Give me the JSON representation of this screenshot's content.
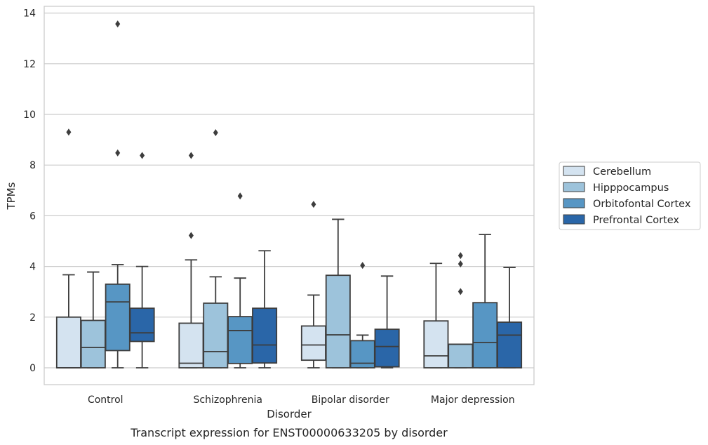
{
  "chart_data": {
    "type": "boxplot",
    "caption": "Transcript expression for ENST00000633205 by disorder",
    "xlabel": "Disorder",
    "ylabel": "TPMs",
    "ylim": [
      -0.65,
      14.25
    ],
    "yticks": [
      0,
      2,
      4,
      6,
      8,
      10,
      12,
      14
    ],
    "grid": "horizontal",
    "legend_position": "right",
    "categories": [
      "Control",
      "Schizophrenia",
      "Bipolar disorder",
      "Major depression"
    ],
    "series": [
      {
        "name": "Cerebellum",
        "color": "#d4e3f0",
        "boxes": [
          {
            "whislo": 0,
            "q1": 0,
            "median": 0,
            "q3": 2.0,
            "whishi": 3.67,
            "fliers": [
              9.3
            ]
          },
          {
            "whislo": 0,
            "q1": 0,
            "median": 0.18,
            "q3": 1.76,
            "whishi": 4.26,
            "fliers": [
              5.22,
              8.38
            ]
          },
          {
            "whislo": 0,
            "q1": 0.3,
            "median": 0.9,
            "q3": 1.65,
            "whishi": 2.87,
            "fliers": [
              6.45
            ]
          },
          {
            "whislo": 0,
            "q1": 0,
            "median": 0.47,
            "q3": 1.85,
            "whishi": 4.12,
            "fliers": []
          }
        ]
      },
      {
        "name": "Hipppocampus",
        "color": "#9dc3db",
        "boxes": [
          {
            "whislo": 0,
            "q1": 0,
            "median": 0.8,
            "q3": 1.87,
            "whishi": 3.78,
            "fliers": []
          },
          {
            "whislo": 0,
            "q1": 0,
            "median": 0.64,
            "q3": 2.55,
            "whishi": 3.59,
            "fliers": [
              9.28
            ]
          },
          {
            "whislo": 0,
            "q1": 0,
            "median": 1.3,
            "q3": 3.65,
            "whishi": 5.86,
            "fliers": []
          },
          {
            "whislo": 0,
            "q1": 0,
            "median": 0.93,
            "q3": 0.93,
            "whishi": 0.93,
            "fliers": [
              3.01,
              4.1,
              4.43
            ]
          }
        ]
      },
      {
        "name": "Orbitofontal Cortex",
        "color": "#5796c4",
        "boxes": [
          {
            "whislo": 0,
            "q1": 0.68,
            "median": 2.6,
            "q3": 3.3,
            "whishi": 4.07,
            "fliers": [
              8.48,
              13.57
            ]
          },
          {
            "whislo": 0,
            "q1": 0.17,
            "median": 1.47,
            "q3": 2.02,
            "whishi": 3.54,
            "fliers": [
              6.78
            ]
          },
          {
            "whislo": 0,
            "q1": 0,
            "median": 0.18,
            "q3": 1.07,
            "whishi": 1.29,
            "fliers": [
              4.04
            ]
          },
          {
            "whislo": 0,
            "q1": 0,
            "median": 1.0,
            "q3": 2.57,
            "whishi": 5.26,
            "fliers": []
          }
        ]
      },
      {
        "name": "Prefrontal Cortex",
        "color": "#2a66a8",
        "boxes": [
          {
            "whislo": 0,
            "q1": 1.04,
            "median": 1.38,
            "q3": 2.35,
            "whishi": 4.0,
            "fliers": [
              8.38
            ]
          },
          {
            "whislo": 0,
            "q1": 0.19,
            "median": 0.9,
            "q3": 2.35,
            "whishi": 4.62,
            "fliers": []
          },
          {
            "whislo": 0,
            "q1": 0.04,
            "median": 0.84,
            "q3": 1.52,
            "whishi": 3.62,
            "fliers": []
          },
          {
            "whislo": 0,
            "q1": 0,
            "median": 1.29,
            "q3": 1.8,
            "whishi": 3.96,
            "fliers": []
          }
        ]
      }
    ]
  }
}
